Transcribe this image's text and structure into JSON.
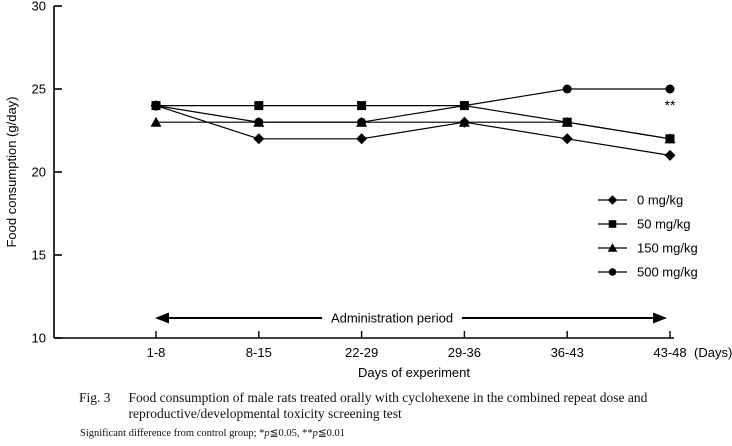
{
  "figure": {
    "fig_label": "Fig. 3",
    "caption_lines": [
      "Food consumption of male rats treated orally with cyclohexene in the combined repeat dose and",
      "reproductive/developmental toxicity screening test"
    ],
    "footnote_parts": [
      "Significant difference from control group; *",
      "p",
      "≦0.05, **",
      "p",
      "≦0.01"
    ]
  },
  "chart_data": {
    "type": "line",
    "title": "",
    "xlabel": "Days of experiment",
    "ylabel": "Food consumption (g/day)",
    "categories": [
      "1-8",
      "8-15",
      "22-29",
      "29-36",
      "36-43",
      "43-48"
    ],
    "x_unit_suffix": "(Days)",
    "ylim": [
      10,
      30
    ],
    "yticks": [
      10,
      15,
      20,
      25,
      30
    ],
    "grid": "off",
    "legend_position": "inside-right",
    "series": [
      {
        "name": "0 mg/kg",
        "marker": "diamond",
        "values": [
          24,
          22,
          22,
          23,
          22,
          21
        ]
      },
      {
        "name": "50 mg/kg",
        "marker": "square",
        "values": [
          24,
          24,
          24,
          24,
          23,
          22
        ]
      },
      {
        "name": "150 mg/kg",
        "marker": "triangle",
        "values": [
          23,
          23,
          23,
          23,
          23,
          22
        ]
      },
      {
        "name": "500 mg/kg",
        "marker": "circle",
        "values": [
          24,
          23,
          23,
          24,
          25,
          25
        ]
      }
    ],
    "annotation": {
      "text": "**",
      "series": "500 mg/kg",
      "category": "43-48"
    },
    "admin_arrow_label": "Administration period",
    "line_color": "#000000",
    "background_color": "#ffffff"
  }
}
